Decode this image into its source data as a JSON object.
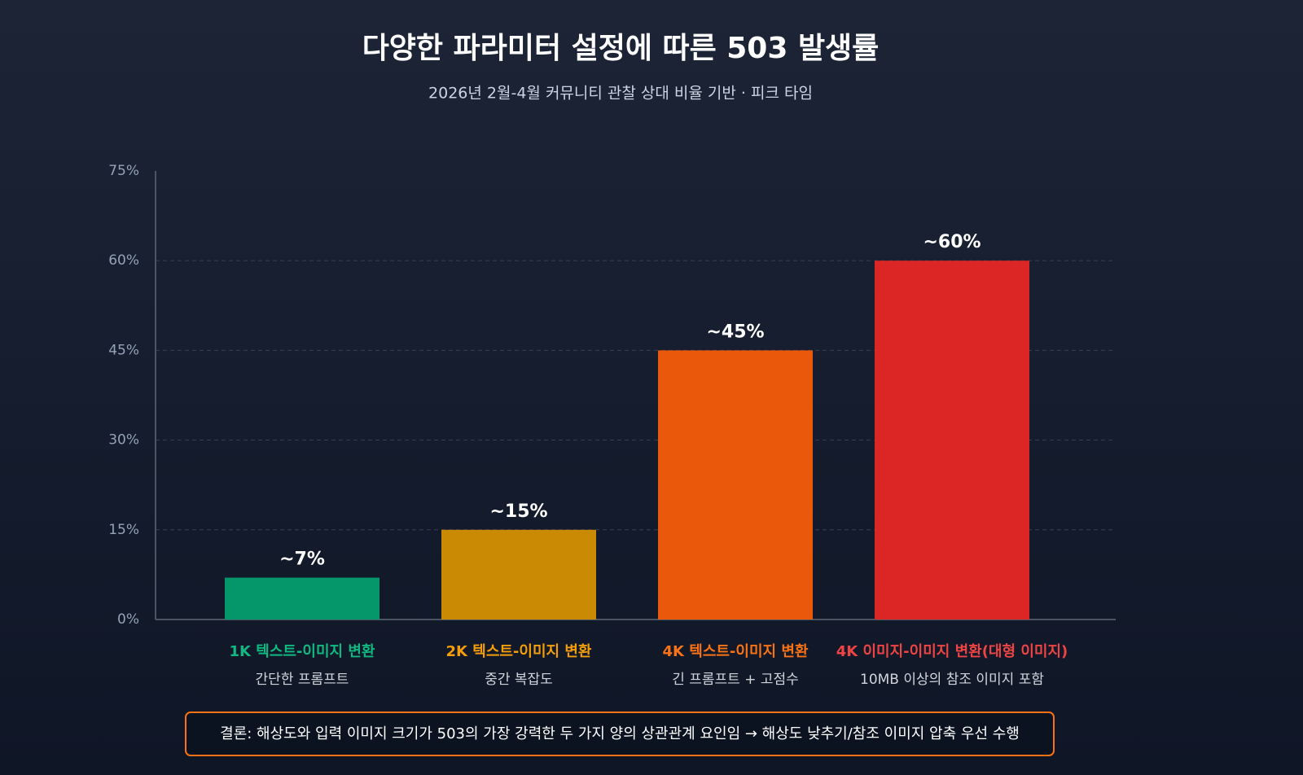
{
  "chart_data": {
    "type": "bar",
    "title": "다양한 파라미터 설정에 따른 503 발생률",
    "subtitle": "2026년 2월-4월 커뮤니티 관찰 상대 비율 기반 · 피크 타임",
    "categories": [
      "1K 텍스트-이미지 변환",
      "2K 텍스트-이미지 변환",
      "4K 텍스트-이미지 변환",
      "4K 이미지-이미지 변환(대형 이미지)"
    ],
    "category_notes": [
      "간단한 프롬프트",
      "중간 복잡도",
      "긴 프롬프트 + 고점수",
      "10MB 이상의 참조 이미지 포함"
    ],
    "values": [
      7,
      15,
      45,
      60
    ],
    "value_labels": [
      "~7%",
      "~15%",
      "~45%",
      "~60%"
    ],
    "colors": [
      "#059669",
      "#ca8a04",
      "#ea580c",
      "#dc2626"
    ],
    "label_colors": [
      "#10b981",
      "#f59e0b",
      "#f97316",
      "#ef4444"
    ],
    "ylim": [
      0,
      75
    ],
    "yticks": [
      {
        "value": 0,
        "label": "0%"
      },
      {
        "value": 15,
        "label": "15%"
      },
      {
        "value": 30,
        "label": "30%"
      },
      {
        "value": 45,
        "label": "45%"
      },
      {
        "value": 60,
        "label": "60%"
      },
      {
        "value": 75,
        "label": "75%"
      }
    ],
    "grid": true,
    "conclusion": "결론: 해상도와 입력 이미지 크기가 503의 가장 강력한 두 가지 양의 상관관계 요인임 → 해상도 낮추기/참조 이미지 압축 우선 수행"
  }
}
